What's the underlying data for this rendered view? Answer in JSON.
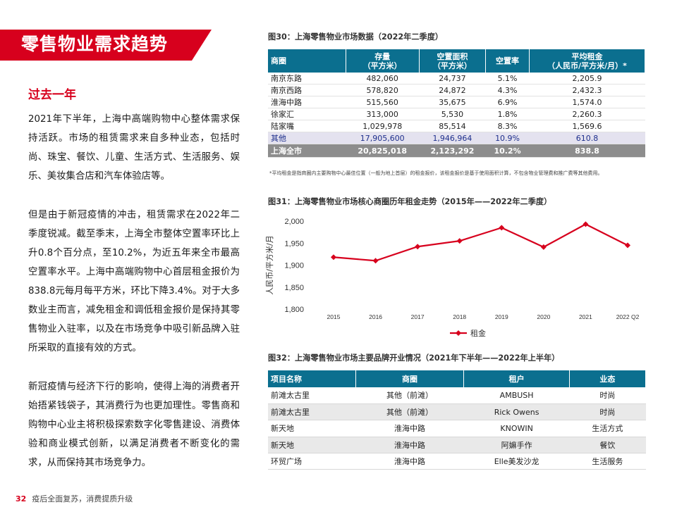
{
  "section_title": "零售物业需求趋势",
  "left": {
    "heading": "过去一年",
    "paragraphs": [
      "2021年下半年，上海中高端购物中心整体需求保持活跃。市场的租赁需求来自多种业态，包括时尚、珠宝、餐饮、儿童、生活方式、生活服务、娱乐、美妆集合店和汽车体验店等。",
      "但是由于新冠疫情的冲击，租赁需求在2022年二季度锐减。截至季末，上海全市整体空置率环比上升0.8个百分点，至10.2%，为近五年来全市最高空置率水平。上海中高端购物中心首层租金报价为838.8元每月每平方米，环比下降3.4%。对于大多数业主而言，减免租金和调低租金报价是保持其零售物业入驻率，以及在市场竞争中吸引新品牌入驻所采取的直接有效的方式。",
      "新冠疫情与经济下行的影响，使得上海的消费者开始捂紧钱袋子，其消费行为也更加理性。零售商和购物中心业主将积极探索数字化零售建设、消费体验和商业模式创新，以满足消费者不断变化的需求，从而保持其市场竞争力。"
    ]
  },
  "footer": {
    "page_number": "32",
    "text": "疫后全面复苏，消费提质升级"
  },
  "table30": {
    "title": "图30：上海零售物业市场数据（2022年二季度）",
    "headers": [
      {
        "l1": "商圈",
        "l2": ""
      },
      {
        "l1": "存量",
        "l2": "（平方米）"
      },
      {
        "l1": "空置面积",
        "l2": "（平方米）"
      },
      {
        "l1": "空置率",
        "l2": ""
      },
      {
        "l1": "平均租金",
        "l2": "（人民币/平方米/月）*"
      }
    ],
    "rows": [
      [
        "南京东路",
        "482,060",
        "24,737",
        "5.1%",
        "2,205.9"
      ],
      [
        "南京西路",
        "578,820",
        "24,872",
        "4.3%",
        "2,432.3"
      ],
      [
        "淮海中路",
        "515,560",
        "35,675",
        "6.9%",
        "1,574.0"
      ],
      [
        "徐家汇",
        "313,000",
        "5,530",
        "1.8%",
        "2,260.3"
      ],
      [
        "陆家嘴",
        "1,029,978",
        "85,514",
        "8.3%",
        "1,569.6"
      ],
      [
        "其他",
        "17,905,600",
        "1,946,964",
        "10.9%",
        "610.8"
      ],
      [
        "上海全市",
        "20,825,018",
        "2,123,292",
        "10.2%",
        "838.8"
      ]
    ],
    "note": "*平均租金是指商圈内主要购物中心最佳位置（一般为地上首层）的租金报价，该租金报价是基于使用面积计算，不包含物业管理费和推广费等其他费用。"
  },
  "chart_title": "图31：上海零售物业市场核心商圈历年租金走势（2015年——2022年二季度）",
  "chart_data": {
    "type": "line",
    "categories": [
      "2015",
      "2016",
      "2017",
      "2018",
      "2019",
      "2020",
      "2021",
      "2022 Q2"
    ],
    "series": [
      {
        "name": "租金",
        "values": [
          1918,
          1910,
          1942,
          1955,
          1985,
          1941,
          1993,
          1945
        ],
        "color": "#d7001d"
      }
    ],
    "ylabel": "人民币/平方米/月",
    "ylim": [
      1800,
      2000
    ],
    "yticks": [
      "1,800",
      "1,850",
      "1,900",
      "1,950",
      "2,000"
    ],
    "grid": false,
    "legend": "bottom-center"
  },
  "table32": {
    "title": "图32：上海零售物业市场主要品牌开业情况（2021年下半年——2022年上半年）",
    "headers": [
      "项目名称",
      "商圈",
      "租户",
      "业态"
    ],
    "rows": [
      [
        "前滩太古里",
        "其他（前滩）",
        "AMBUSH",
        "时尚"
      ],
      [
        "前滩太古里",
        "其他（前滩）",
        "Rick Owens",
        "时尚"
      ],
      [
        "新天地",
        "淮海中路",
        "KNOWIN",
        "生活方式"
      ],
      [
        "新天地",
        "淮海中路",
        "阿嫲手作",
        "餐饮"
      ],
      [
        "环贸广场",
        "淮海中路",
        "Elle美发沙龙",
        "生活服务"
      ]
    ]
  },
  "colors": {
    "accent": "#d7001d",
    "table_header": "#0b6f8f",
    "total_row": "#8d8d8d",
    "highlight_row": "#e4e2ef"
  }
}
